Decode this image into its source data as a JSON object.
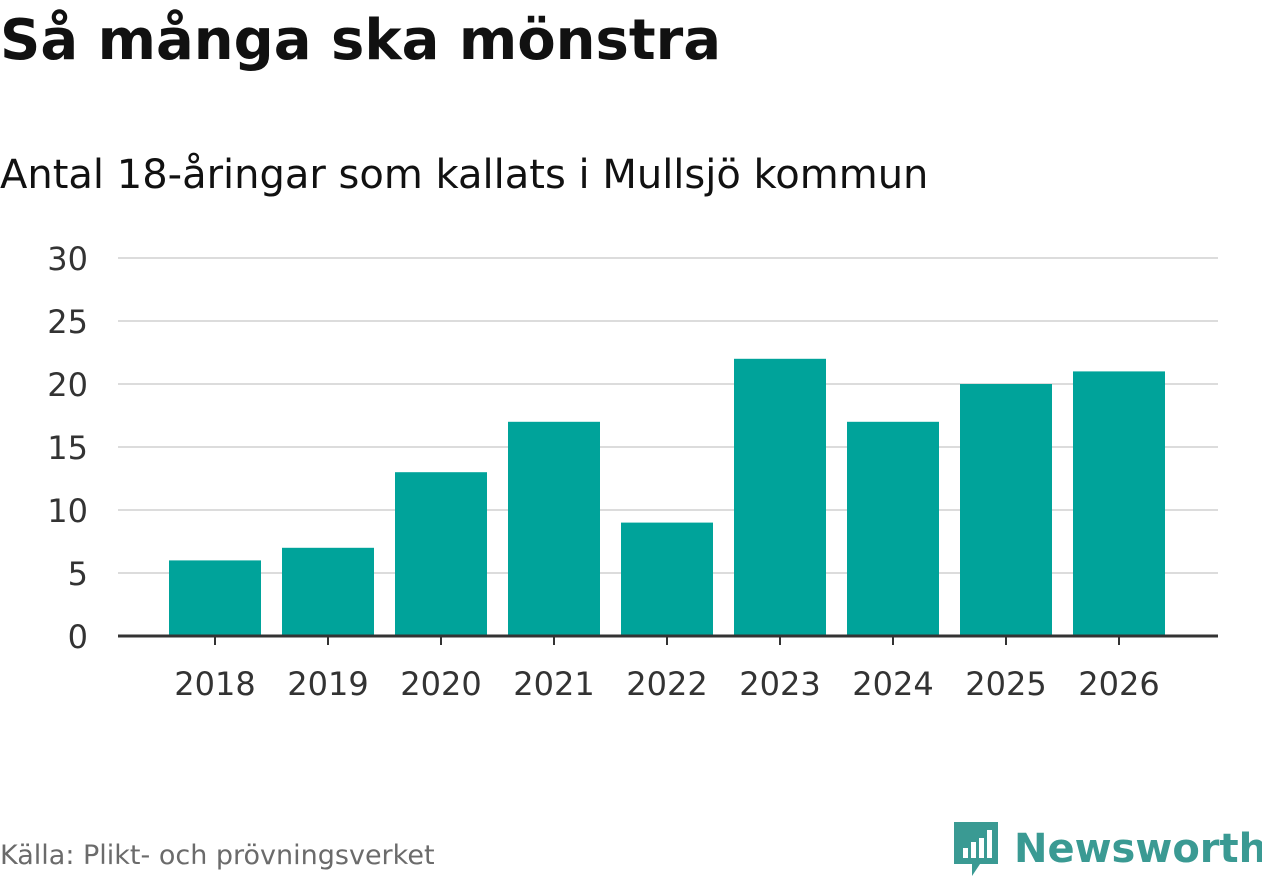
{
  "header": {
    "title": "Så många ska mönstra",
    "subtitle": "Antal 18-åringar som kallats i Mullsjö kommun"
  },
  "footer": {
    "source": "Källa: Plikt- och prövningsverket",
    "brand": "Newsworthy"
  },
  "colors": {
    "bar": "#00a39a",
    "grid": "#dcdcdc",
    "axis": "#333333",
    "brand": "#3a9a93"
  },
  "chart_data": {
    "type": "bar",
    "title": "Så många ska mönstra",
    "subtitle": "Antal 18-åringar som kallats i Mullsjö kommun",
    "xlabel": "",
    "ylabel": "",
    "categories": [
      "2018",
      "2019",
      "2020",
      "2021",
      "2022",
      "2023",
      "2024",
      "2025",
      "2026"
    ],
    "values": [
      6,
      7,
      13,
      17,
      9,
      22,
      17,
      20,
      21
    ],
    "ylim": [
      0,
      30
    ],
    "yticks": [
      0,
      5,
      10,
      15,
      20,
      25,
      30
    ],
    "grid": true,
    "legend": "none"
  }
}
